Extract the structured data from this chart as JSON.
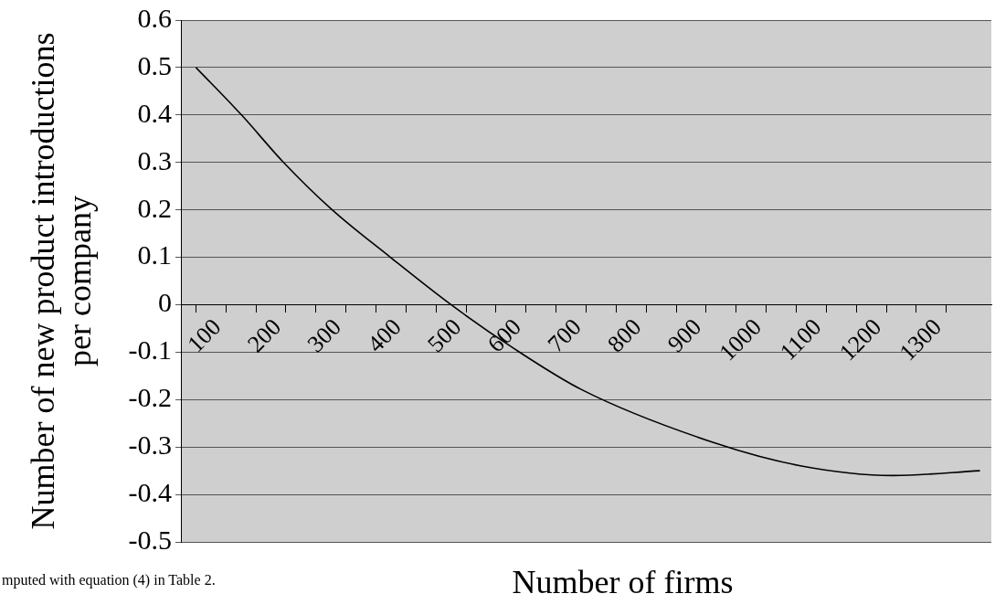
{
  "chart_data": {
    "type": "line",
    "xlabel": "Number of firms",
    "ylabel": "Number of new product introductions per company",
    "annotations": [
      "mputed with equation (4) in Table 2."
    ],
    "series": [
      {
        "color": "#000000",
        "x": [
          100,
          176,
          246,
          327,
          424,
          525,
          627,
          744,
          961,
          1109,
          1261,
          1406
        ],
        "values": [
          0.5,
          0.4,
          0.3,
          0.2,
          0.1,
          0,
          -0.09,
          -0.18,
          -0.29,
          -0.34,
          -0.36,
          -0.35
        ]
      }
    ],
    "xlim": [
      75,
      1425
    ],
    "xticks": [
      100,
      {
        "value": 150,
        "label": null
      },
      200,
      {
        "value": 250,
        "label": null
      },
      300,
      {
        "value": 350,
        "label": null
      },
      400,
      {
        "value": 450,
        "label": null
      },
      500,
      {
        "value": 550,
        "label": null
      },
      600,
      {
        "value": 650,
        "label": null
      },
      700,
      {
        "value": 750,
        "label": null
      },
      800,
      {
        "value": 850,
        "label": null
      },
      900,
      {
        "value": 950,
        "label": null
      },
      1000,
      {
        "value": 1050,
        "label": null
      },
      1100,
      {
        "value": 1150,
        "label": null
      },
      1200,
      {
        "value": 1250,
        "label": null
      },
      1300,
      {
        "value": 1350,
        "label": null
      }
    ],
    "ylim": [
      -0.5,
      0.6
    ],
    "yticks": [
      -0.5,
      -0.4,
      -0.3,
      -0.2,
      -0.1,
      0,
      0.1,
      0.2,
      0.3,
      0.4,
      0.5,
      0.6
    ],
    "grid": "y",
    "legend": false,
    "marker": "none",
    "line_style": "solid"
  }
}
